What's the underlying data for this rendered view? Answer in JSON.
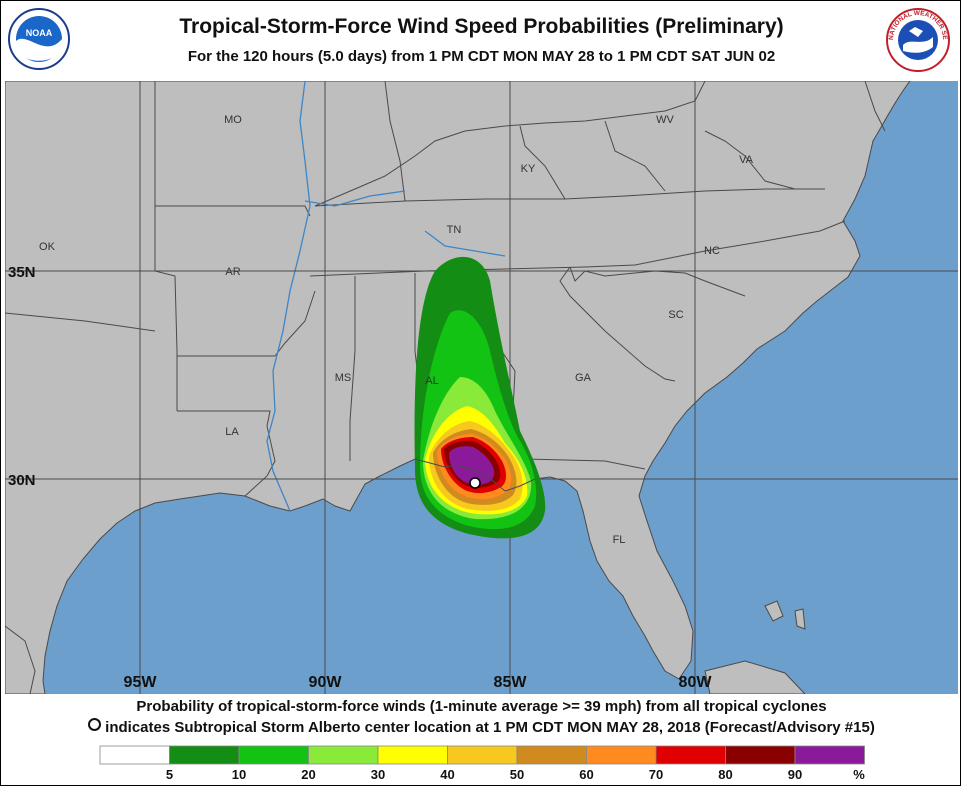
{
  "header": {
    "title": "Tropical-Storm-Force Wind Speed Probabilities (Preliminary)",
    "subtitle": "For the 120 hours (5.0 days) from 1 PM CDT MON MAY 28 to 1 PM CDT SAT JUN 02",
    "left_logo": {
      "icon": "noaa-logo",
      "text": "NOAA"
    },
    "right_logo": {
      "icon": "nws-logo",
      "text": "NATIONAL WEATHER SERVICE"
    }
  },
  "map": {
    "colors": {
      "land": "#bebebe",
      "water": "#6d9fcc",
      "borders": "#4a4a4a",
      "lat_lon_lines": "#4a4a4a",
      "rivers": "#3d86c8"
    },
    "state_labels": [
      "MO",
      "KY",
      "WV",
      "VA",
      "OK",
      "TN",
      "NC",
      "AR",
      "SC",
      "MS",
      "AL",
      "GA",
      "LA",
      "FL"
    ],
    "latitude_labels": [
      "35N",
      "30N"
    ],
    "longitude_labels": [
      "95W",
      "90W",
      "85W",
      "80W"
    ],
    "storm_marker": {
      "icon": "circle-marker-icon",
      "color": "#ffffff"
    }
  },
  "footer": {
    "line1": "Probability of tropical-storm-force winds (1-minute average >= 39 mph) from all tropical cyclones",
    "line2": "indicates Subtropical Storm Alberto center location at 1 PM CDT MON MAY 28, 2018 (Forecast/Advisory #15)",
    "line2_icon": "circle-marker-icon"
  },
  "legend": {
    "swatches": [
      {
        "range": "0-5",
        "color": "#ffffff"
      },
      {
        "range": "5-10",
        "color": "#138d13"
      },
      {
        "range": "10-20",
        "color": "#13c313"
      },
      {
        "range": "20-30",
        "color": "#8aea3a"
      },
      {
        "range": "30-40",
        "color": "#ffff00"
      },
      {
        "range": "40-50",
        "color": "#f7c81e"
      },
      {
        "range": "50-60",
        "color": "#d08a1e"
      },
      {
        "range": "60-70",
        "color": "#ff8a1e"
      },
      {
        "range": "70-80",
        "color": "#e00000"
      },
      {
        "range": "80-90",
        "color": "#8a0000"
      },
      {
        "range": "90-100",
        "color": "#8a1a9a"
      }
    ],
    "labels": [
      "5",
      "10",
      "20",
      "30",
      "40",
      "50",
      "60",
      "70",
      "80",
      "90"
    ],
    "unit": "%"
  }
}
